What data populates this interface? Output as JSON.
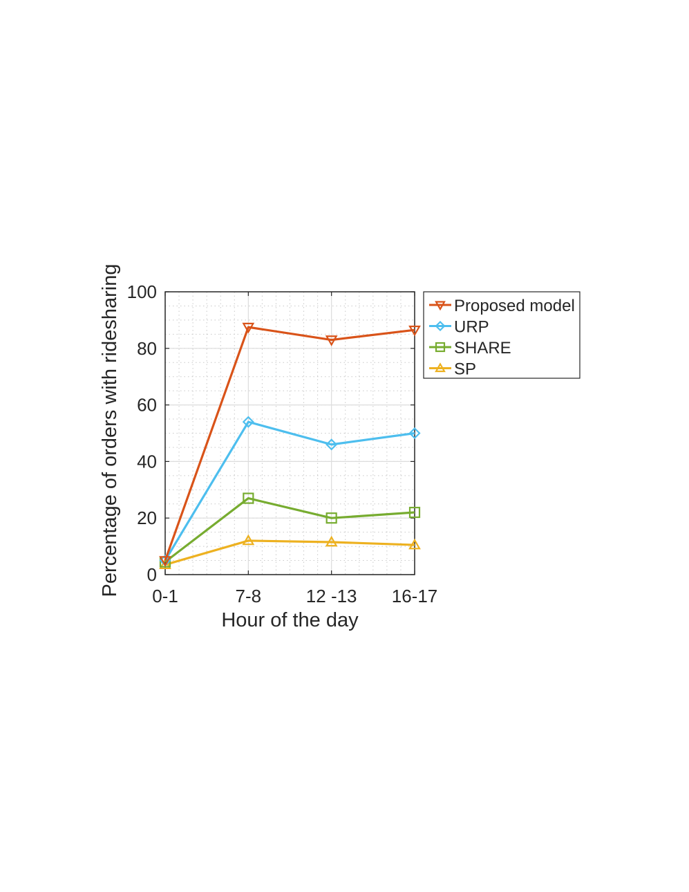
{
  "chart_data": {
    "type": "line",
    "categories": [
      "0-1",
      "7-8",
      "12 -13",
      "16-17"
    ],
    "xlabel": "Hour of the day",
    "ylabel": "Percentage of orders with ridesharing",
    "ylim": [
      0,
      100
    ],
    "yticks": [
      0,
      20,
      40,
      60,
      80,
      100
    ],
    "grid": true,
    "minor_grid": true,
    "legend_position": "outside-right-top",
    "series": [
      {
        "name": "Proposed model",
        "values": [
          5,
          87.5,
          83,
          86.5
        ],
        "color": "#D95319",
        "marker": "triangle-down"
      },
      {
        "name": "URP",
        "values": [
          5,
          54,
          46,
          50
        ],
        "color": "#4DBEEE",
        "marker": "diamond"
      },
      {
        "name": "SHARE",
        "values": [
          4.5,
          27,
          20,
          22
        ],
        "color": "#77AC30",
        "marker": "square"
      },
      {
        "name": "SP",
        "values": [
          3.5,
          12,
          11.5,
          10.5
        ],
        "color": "#EDB120",
        "marker": "triangle-up"
      }
    ]
  }
}
